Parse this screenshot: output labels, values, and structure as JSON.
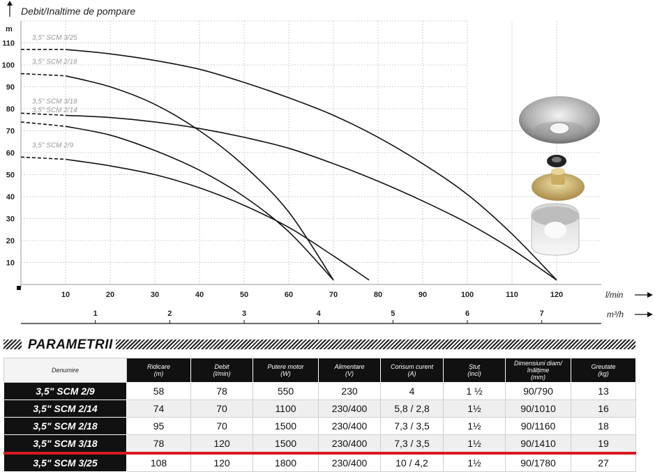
{
  "chart_data": {
    "type": "line",
    "title": "Debit/Inaltime de pompare",
    "ylabel": "m",
    "xlabel": "l/min",
    "x2label": "m³/h",
    "xlim": [
      0,
      130
    ],
    "ylim": [
      0,
      120
    ],
    "x_ticks": [
      10,
      20,
      30,
      40,
      50,
      60,
      70,
      80,
      90,
      100,
      110,
      120
    ],
    "y_ticks": [
      10,
      20,
      30,
      40,
      50,
      60,
      70,
      80,
      90,
      100,
      110
    ],
    "x2_ticks": [
      1,
      2,
      3,
      4,
      5,
      6,
      7
    ],
    "grid": true,
    "series": [
      {
        "name": "3,5\" SCM 3/25",
        "x": [
          0,
          10,
          20,
          30,
          40,
          50,
          60,
          70,
          80,
          90,
          100,
          110,
          120
        ],
        "y": [
          107,
          107,
          105,
          102,
          98,
          92,
          85,
          77,
          67,
          55,
          41,
          23,
          2
        ]
      },
      {
        "name": "3,5\" SCM 2/18",
        "x": [
          0,
          10,
          20,
          30,
          40,
          50,
          60,
          70
        ],
        "y": [
          96,
          95,
          90,
          82,
          70,
          54,
          33,
          2
        ]
      },
      {
        "name": "3,5\" SCM 3/18",
        "x": [
          0,
          10,
          20,
          30,
          40,
          50,
          60,
          70,
          80,
          90,
          100,
          110,
          120
        ],
        "y": [
          78,
          77,
          76,
          74,
          71,
          67,
          62,
          55,
          47,
          38,
          28,
          16,
          2
        ]
      },
      {
        "name": "3,5\" SCM 2/14",
        "x": [
          0,
          10,
          20,
          30,
          40,
          50,
          60,
          70
        ],
        "y": [
          74,
          72,
          68,
          61,
          52,
          40,
          24,
          2
        ]
      },
      {
        "name": "3,5\" SCM 2/9",
        "x": [
          0,
          10,
          20,
          30,
          40,
          50,
          60,
          70,
          78
        ],
        "y": [
          58,
          57,
          54,
          50,
          44,
          36,
          26,
          13,
          2
        ]
      }
    ]
  },
  "section_title": "PARAMETRII",
  "table": {
    "headers": [
      [
        "Denumire",
        ""
      ],
      [
        "Ridicare",
        "(m)"
      ],
      [
        "Debit",
        "(l/min)"
      ],
      [
        "Putere motor",
        "(W)"
      ],
      [
        "Alimentare",
        "(V)"
      ],
      [
        "Consum curent",
        "(A)"
      ],
      [
        "Ștuț",
        "(inci)"
      ],
      [
        "Dimensiuni diam/înălțime",
        "(mm)"
      ],
      [
        "Greutate",
        "(kg)"
      ]
    ],
    "rows": [
      [
        "3,5\" SCM 2/9",
        "58",
        "78",
        "550",
        "230",
        "4",
        "1 ½",
        "90/790",
        "13"
      ],
      [
        "3,5\" SCM 2/14",
        "74",
        "70",
        "1100",
        "230/400",
        "5,8 / 2,8",
        "1½",
        "90/1010",
        "16"
      ],
      [
        "3,5\" SCM 2/18",
        "95",
        "70",
        "1500",
        "230/400",
        "7,3 / 3,5",
        "1½",
        "90/1160",
        "18"
      ],
      [
        "3,5\" SCM 3/18",
        "78",
        "120",
        "1500",
        "230/400",
        "7,3 / 3,5",
        "1½",
        "90/1410",
        "19"
      ],
      [
        "3,5\" SCM 3/25",
        "108",
        "120",
        "1800",
        "230/400",
        "10 / 4,2",
        "1½",
        "90/1780",
        "27"
      ]
    ]
  }
}
